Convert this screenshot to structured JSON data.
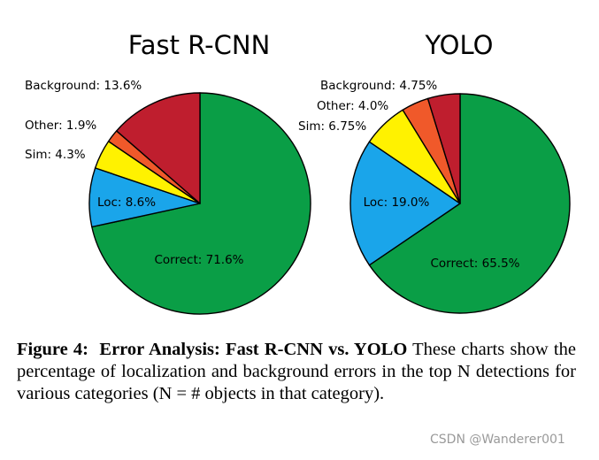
{
  "chart_data": [
    {
      "type": "pie",
      "title": "Fast R-CNN",
      "start_angle_deg": 0,
      "direction": "clockwise",
      "series": [
        {
          "name": "Correct",
          "value": 71.6,
          "label": "Correct: 71.6%",
          "color": "#0a9e46"
        },
        {
          "name": "Loc",
          "value": 8.6,
          "label": "Loc: 8.6%",
          "color": "#1aa5ea"
        },
        {
          "name": "Sim",
          "value": 4.3,
          "label": "Sim: 4.3%",
          "color": "#fff200"
        },
        {
          "name": "Other",
          "value": 1.9,
          "label": "Other: 1.9%",
          "color": "#f0592a"
        },
        {
          "name": "Background",
          "value": 13.6,
          "label": "Background: 13.6%",
          "color": "#bf1e2e"
        }
      ]
    },
    {
      "type": "pie",
      "title": "YOLO",
      "start_angle_deg": 0,
      "direction": "clockwise",
      "series": [
        {
          "name": "Correct",
          "value": 65.5,
          "label": "Correct: 65.5%",
          "color": "#0a9e46"
        },
        {
          "name": "Loc",
          "value": 19.0,
          "label": "Loc: 19.0%",
          "color": "#1aa5ea"
        },
        {
          "name": "Sim",
          "value": 6.75,
          "label": "Sim: 6.75%",
          "color": "#fff200"
        },
        {
          "name": "Other",
          "value": 4.0,
          "label": "Other: 4.0%",
          "color": "#f0592a"
        },
        {
          "name": "Background",
          "value": 4.75,
          "label": "Background: 4.75%",
          "color": "#bf1e2e"
        }
      ]
    }
  ],
  "caption": {
    "lead": "Figure 4:",
    "title": "Error Analysis: Fast R-CNN vs. YOLO",
    "body": "These charts show the percentage of localization and background errors in the top N detections for various categories (N = # objects in that category)."
  },
  "watermark": "CSDN @Wanderer001"
}
